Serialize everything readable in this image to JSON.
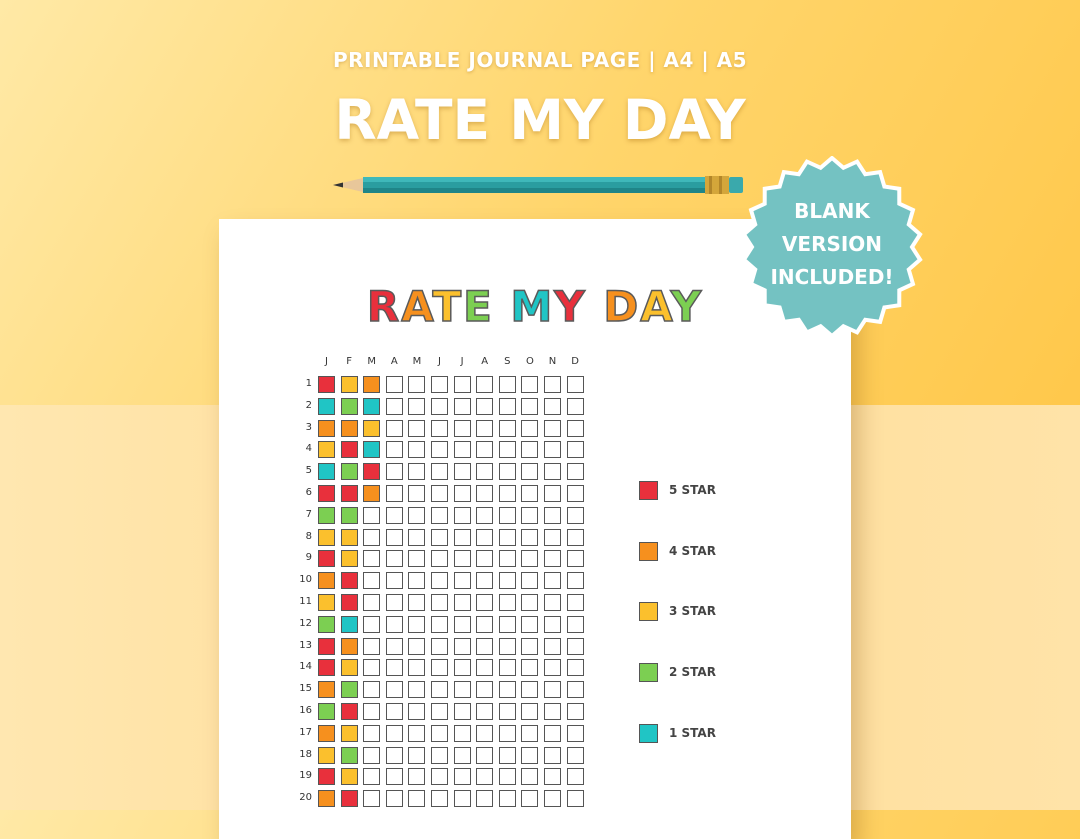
{
  "header": {
    "subtitle": "PRINTABLE JOURNAL PAGE | A4 | A5",
    "title": "RATE MY DAY"
  },
  "badge": {
    "lines": [
      "BLANK",
      "VERSION",
      "INCLUDED!"
    ],
    "color": "#74c2c2"
  },
  "sheet": {
    "title_letters": [
      {
        "ch": "R",
        "color": "#e8303c"
      },
      {
        "ch": "A",
        "color": "#f6901e"
      },
      {
        "ch": "T",
        "color": "#fbc02d"
      },
      {
        "ch": "E",
        "color": "#7ccf52"
      },
      {
        "ch": " ",
        "color": "#ffffff"
      },
      {
        "ch": "M",
        "color": "#20c5c5"
      },
      {
        "ch": "Y",
        "color": "#e8303c"
      },
      {
        "ch": " ",
        "color": "#ffffff"
      },
      {
        "ch": "D",
        "color": "#f6901e"
      },
      {
        "ch": "A",
        "color": "#fbc02d"
      },
      {
        "ch": "Y",
        "color": "#7ccf52"
      }
    ],
    "months": [
      "J",
      "F",
      "M",
      "A",
      "M",
      "J",
      "J",
      "A",
      "S",
      "O",
      "N",
      "D"
    ],
    "days": [
      "1",
      "2",
      "3",
      "4",
      "5",
      "6",
      "7",
      "8",
      "9",
      "10",
      "11",
      "12",
      "13",
      "14",
      "15",
      "16",
      "17",
      "18",
      "19",
      "20"
    ],
    "rating_colors": {
      "5": "#e8303c",
      "4": "#f6901e",
      "3": "#fbc02d",
      "2": "#7ccf52",
      "1": "#20c5c5"
    },
    "ratings_by_day": [
      [
        5,
        3,
        4
      ],
      [
        1,
        2,
        1
      ],
      [
        4,
        4,
        3
      ],
      [
        3,
        5,
        1
      ],
      [
        1,
        2,
        5
      ],
      [
        5,
        5,
        4
      ],
      [
        2,
        2
      ],
      [
        3,
        3
      ],
      [
        5,
        3
      ],
      [
        4,
        5
      ],
      [
        3,
        5
      ],
      [
        2,
        1
      ],
      [
        5,
        4
      ],
      [
        5,
        3
      ],
      [
        4,
        2
      ],
      [
        2,
        5
      ],
      [
        4,
        3
      ],
      [
        3,
        2
      ],
      [
        5,
        3
      ],
      [
        4,
        5
      ]
    ],
    "legend": [
      {
        "label": "5 STAR",
        "color": "#e8303c"
      },
      {
        "label": "4 STAR",
        "color": "#f6901e"
      },
      {
        "label": "3 STAR",
        "color": "#fbc02d"
      },
      {
        "label": "2 STAR",
        "color": "#7ccf52"
      },
      {
        "label": "1 STAR",
        "color": "#20c5c5"
      }
    ]
  }
}
